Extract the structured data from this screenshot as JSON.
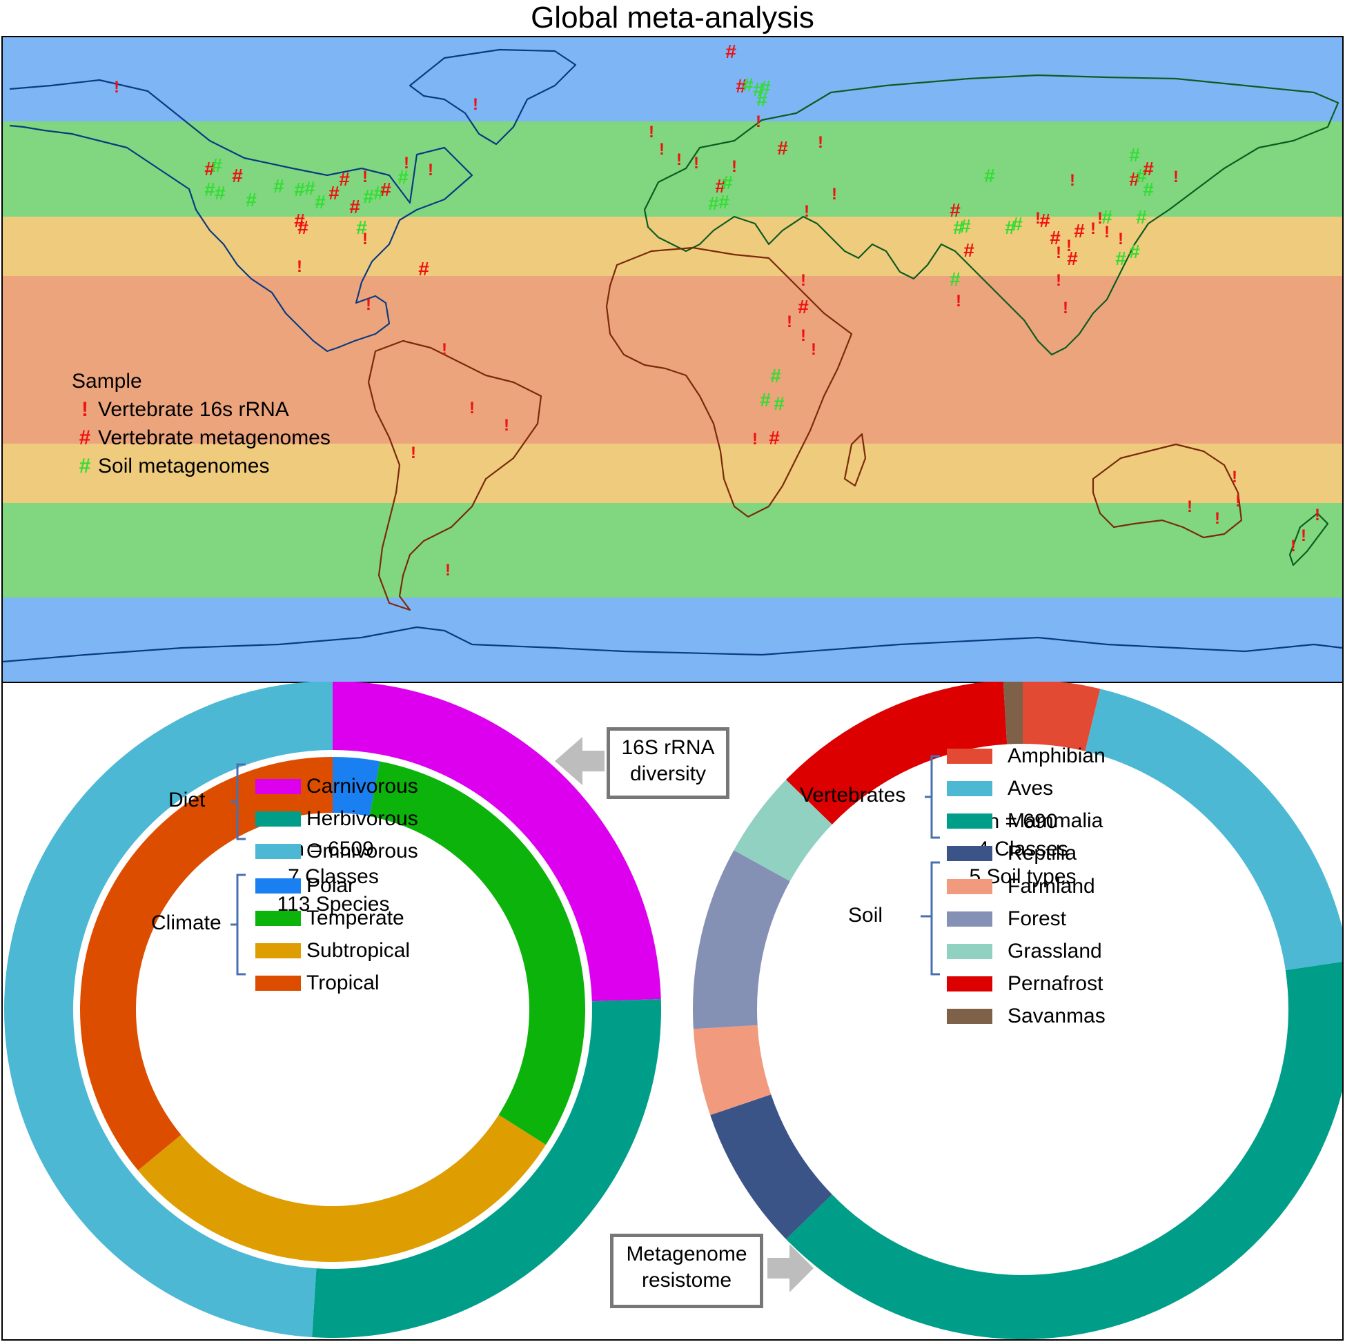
{
  "title": "Global meta-analysis",
  "map": {
    "legend_title": "Sample",
    "legend": [
      {
        "glyph": "!",
        "label": "Vertebrate 16s rRNA",
        "color": "#ee1111"
      },
      {
        "glyph": "#",
        "label": "Vertebrate metagenomes",
        "color": "#ee1111"
      },
      {
        "glyph": "#",
        "label": "Soil metagenomes",
        "color": "#33dd33"
      }
    ],
    "climate_band_colors": {
      "polar": "#7eb5f5",
      "temperate": "#80d77f",
      "subtropical": "#efcb7e",
      "tropical": "#eca47c"
    },
    "coast_color_north": "#0a3a82",
    "coast_color_mid": "#0b5c1f",
    "coast_color_tropic": "#7a2a0a"
  },
  "chart_data": [
    {
      "type": "pie",
      "name": "vertebrate 16S donut",
      "center_text": [
        "n = 6509",
        "7 Classes",
        "113 Species"
      ],
      "rings": [
        {
          "group": "Diet",
          "ring": "outer",
          "slices": [
            {
              "label": "Carnivorous",
              "value": 24.5,
              "color": "#dd00ee"
            },
            {
              "label": "Herbivorous",
              "value": 26.5,
              "color": "#009e88"
            },
            {
              "label": "Omnivorous",
              "value": 49.0,
              "color": "#4cb8d4"
            }
          ]
        },
        {
          "group": "Climate",
          "ring": "inner",
          "slices": [
            {
              "label": "Polar",
              "value": 3.0,
              "color": "#1a7ff0"
            },
            {
              "label": "Temperate",
              "value": 31.0,
              "color": "#0bb30b"
            },
            {
              "label": "Subtropical",
              "value": 30.0,
              "color": "#de9d00"
            },
            {
              "label": "Tropical",
              "value": 36.0,
              "color": "#dd4d00"
            }
          ]
        }
      ],
      "legend": [
        {
          "group": "Diet",
          "items": [
            "Carnivorous",
            "Herbivorous",
            "Omnivorous"
          ]
        },
        {
          "group": "Climate",
          "items": [
            "Polar",
            "Temperate",
            "Subtropical",
            "Tropical"
          ]
        }
      ],
      "callout": "16S rRNA\ndiversity"
    },
    {
      "type": "pie",
      "name": "metagenome resistome donut",
      "center_text": [
        "n = 690",
        "4 Classes",
        "5 Soil types"
      ],
      "slices": [
        {
          "label": "Amphibian",
          "value": 4.0,
          "color": "#e34a33"
        },
        {
          "label": "Aves",
          "value": 20.0,
          "color": "#4cb8d4"
        },
        {
          "label": "Mammalia",
          "value": 42.5,
          "color": "#009e88"
        },
        {
          "label": "Reptilia",
          "value": 7.5,
          "color": "#3b5488"
        },
        {
          "label": "Farmland",
          "value": 4.5,
          "color": "#f19a7e"
        },
        {
          "label": "Forest",
          "value": 9.5,
          "color": "#8491b4"
        },
        {
          "label": "Grassland",
          "value": 4.5,
          "color": "#91d1c2"
        },
        {
          "label": "Pernafrost",
          "value": 12.5,
          "color": "#dc0000"
        },
        {
          "label": "Savanmas",
          "value": 1.0,
          "color": "#7e6148"
        }
      ],
      "legend": [
        {
          "group": "Vertebrates",
          "items": [
            "Amphibian",
            "Aves",
            "Mammalia",
            "Reptilia"
          ]
        },
        {
          "group": "Soil",
          "items": [
            "Farmland",
            "Forest",
            "Grassland",
            "Pernafrost",
            "Savanmas"
          ]
        }
      ],
      "callout": "Metagenome\nresistome"
    }
  ]
}
